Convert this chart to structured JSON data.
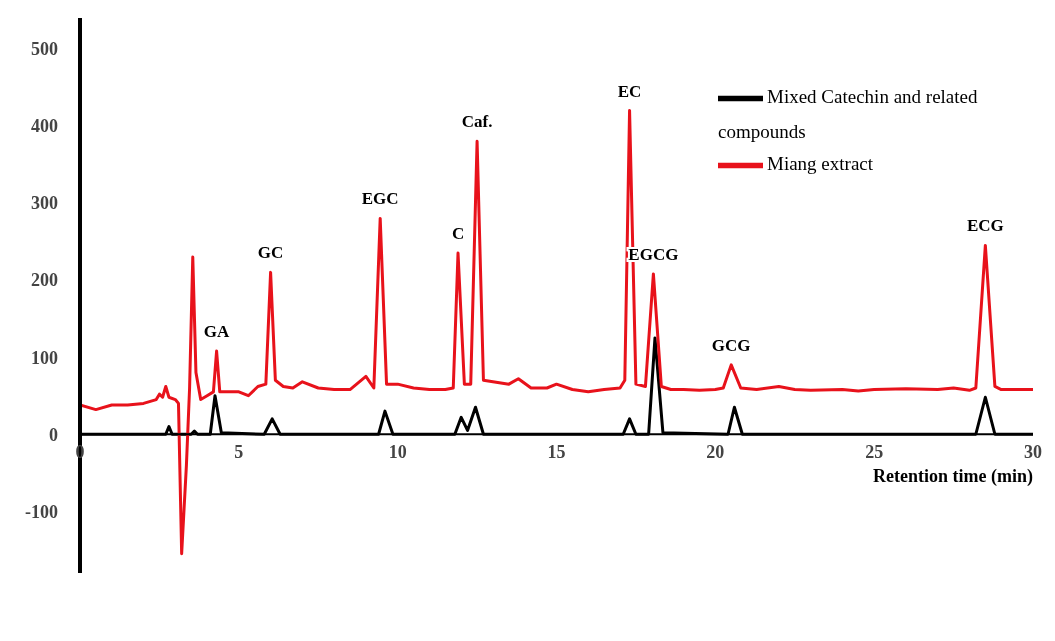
{
  "chart_data": {
    "type": "line",
    "xlabel": "Retention time (min)",
    "xlim": [
      0,
      30
    ],
    "xticks": [
      0,
      5,
      10,
      15,
      20,
      25,
      30
    ],
    "ylim": [
      -180,
      540
    ],
    "yticks": [
      -100,
      0,
      100,
      200,
      300,
      400,
      500
    ],
    "grid": false,
    "legend": "top right",
    "marker": "none",
    "line_style": "solid",
    "series": [
      {
        "name": "Mixed Catechin and related compounds",
        "color": "#000000",
        "x": [
          0,
          2.7,
          2.8,
          2.9,
          3.5,
          3.6,
          3.7,
          4.1,
          4.25,
          4.45,
          5.8,
          6.05,
          6.3,
          9.4,
          9.6,
          9.85,
          11.8,
          12.0,
          12.2,
          12.45,
          12.7,
          17.1,
          17.3,
          17.5,
          17.9,
          18.1,
          18.35,
          20.4,
          20.6,
          20.85,
          28.2,
          28.5,
          28.8,
          30
        ],
        "values": [
          0,
          0,
          10,
          0,
          0,
          4,
          0,
          0,
          50,
          2,
          0,
          20,
          0,
          0,
          30,
          0,
          0,
          22,
          5,
          35,
          0,
          0,
          20,
          0,
          0,
          125,
          2,
          0,
          35,
          0,
          0,
          48,
          0,
          0
        ]
      },
      {
        "name": "Miang extract",
        "color": "#e8121b",
        "x": [
          0,
          0.5,
          1,
          1.5,
          2,
          2.4,
          2.5,
          2.6,
          2.7,
          2.8,
          3.0,
          3.1,
          3.2,
          3.35,
          3.45,
          3.55,
          3.65,
          3.8,
          4.0,
          4.2,
          4.3,
          4.4,
          4.7,
          5.0,
          5.3,
          5.6,
          5.85,
          6.0,
          6.15,
          6.4,
          6.7,
          7.0,
          7.5,
          8,
          8.5,
          9.0,
          9.25,
          9.45,
          9.65,
          10,
          10.5,
          11,
          11.5,
          11.75,
          11.9,
          12.1,
          12.3,
          12.5,
          12.7,
          13,
          13.5,
          13.8,
          14.2,
          14.7,
          15,
          15.5,
          16,
          16.5,
          17,
          17.15,
          17.3,
          17.5,
          17.8,
          18.05,
          18.3,
          18.6,
          19,
          19.5,
          20,
          20.25,
          20.5,
          20.8,
          21.3,
          22,
          22.5,
          23,
          24,
          24.5,
          25,
          26,
          27,
          27.5,
          28,
          28.2,
          28.5,
          28.8,
          29,
          29.5,
          30
        ],
        "values": [
          38,
          32,
          38,
          38,
          40,
          45,
          52,
          48,
          62,
          48,
          45,
          40,
          -155,
          -40,
          60,
          230,
          80,
          45,
          50,
          55,
          108,
          55,
          55,
          55,
          50,
          62,
          65,
          210,
          70,
          62,
          60,
          68,
          60,
          58,
          58,
          75,
          60,
          280,
          65,
          65,
          60,
          58,
          58,
          60,
          235,
          65,
          65,
          380,
          70,
          68,
          65,
          72,
          60,
          60,
          65,
          58,
          55,
          58,
          60,
          70,
          420,
          65,
          62,
          208,
          62,
          58,
          58,
          57,
          58,
          60,
          90,
          60,
          58,
          62,
          58,
          57,
          58,
          56,
          58,
          59,
          58,
          60,
          57,
          60,
          245,
          62,
          58,
          58,
          58
        ]
      }
    ],
    "annotations": [
      {
        "text": "GA",
        "x": 4.3,
        "y": 108
      },
      {
        "text": "GC",
        "x": 6.0,
        "y": 210
      },
      {
        "text": "EGC",
        "x": 9.45,
        "y": 280
      },
      {
        "text": "C",
        "x": 11.9,
        "y": 235
      },
      {
        "text": "Caf.",
        "x": 12.5,
        "y": 380
      },
      {
        "text": "EC",
        "x": 17.3,
        "y": 420
      },
      {
        "text": "EGCG",
        "x": 18.05,
        "y": 208
      },
      {
        "text": "GCG",
        "x": 20.5,
        "y": 90
      },
      {
        "text": "ECG",
        "x": 28.5,
        "y": 245
      }
    ]
  }
}
